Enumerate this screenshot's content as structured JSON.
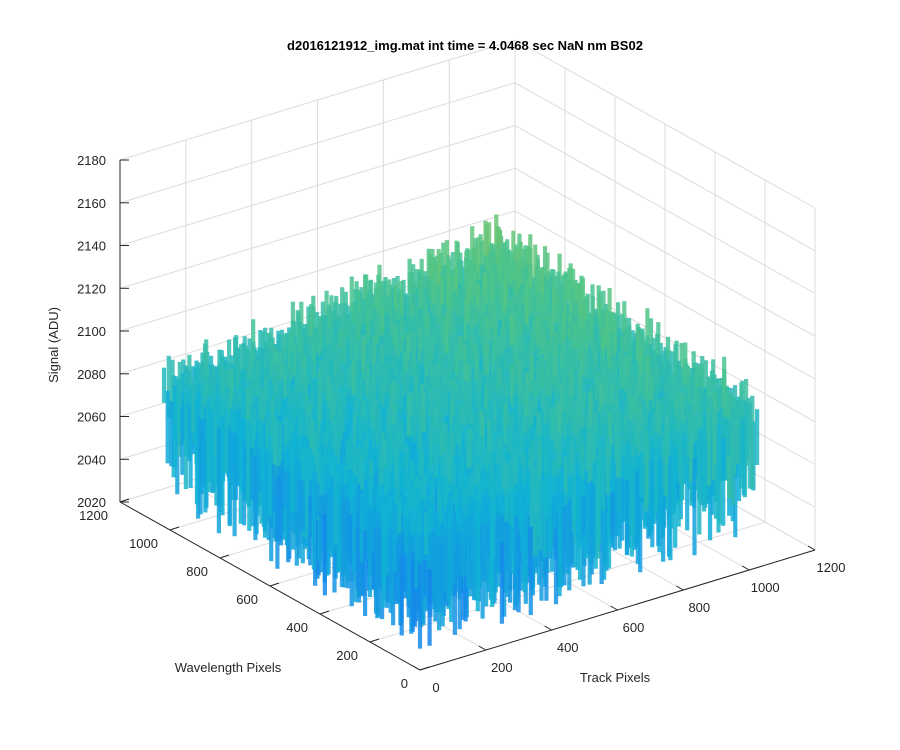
{
  "chart_data": {
    "type": "surface",
    "title": "d2016121912_img.mat int time = 4.0468 sec  NaN nm BS02",
    "xlabel": "Track Pixels",
    "ylabel": "Wavelength Pixels",
    "zlabel": "Signal (ADU)",
    "xlim": [
      0,
      1200
    ],
    "ylim": [
      0,
      1200
    ],
    "zlim": [
      2020,
      2180
    ],
    "x_ticks": [
      0,
      200,
      400,
      600,
      800,
      1000,
      1200
    ],
    "y_ticks": [
      0,
      200,
      400,
      600,
      800,
      1000,
      1200
    ],
    "z_ticks": [
      2020,
      2040,
      2060,
      2080,
      2100,
      2120,
      2140,
      2160,
      2180
    ],
    "surface": {
      "x_range": [
        0,
        1024
      ],
      "y_range": [
        0,
        1024
      ],
      "signal_min": 2030,
      "signal_max": 2170,
      "typical_level": 2085,
      "colormap": [
        "#3d26a8",
        "#1581ee",
        "#11b3d4",
        "#4ec489",
        "#a8c440",
        "#f1bb3a"
      ]
    },
    "grid": true
  }
}
